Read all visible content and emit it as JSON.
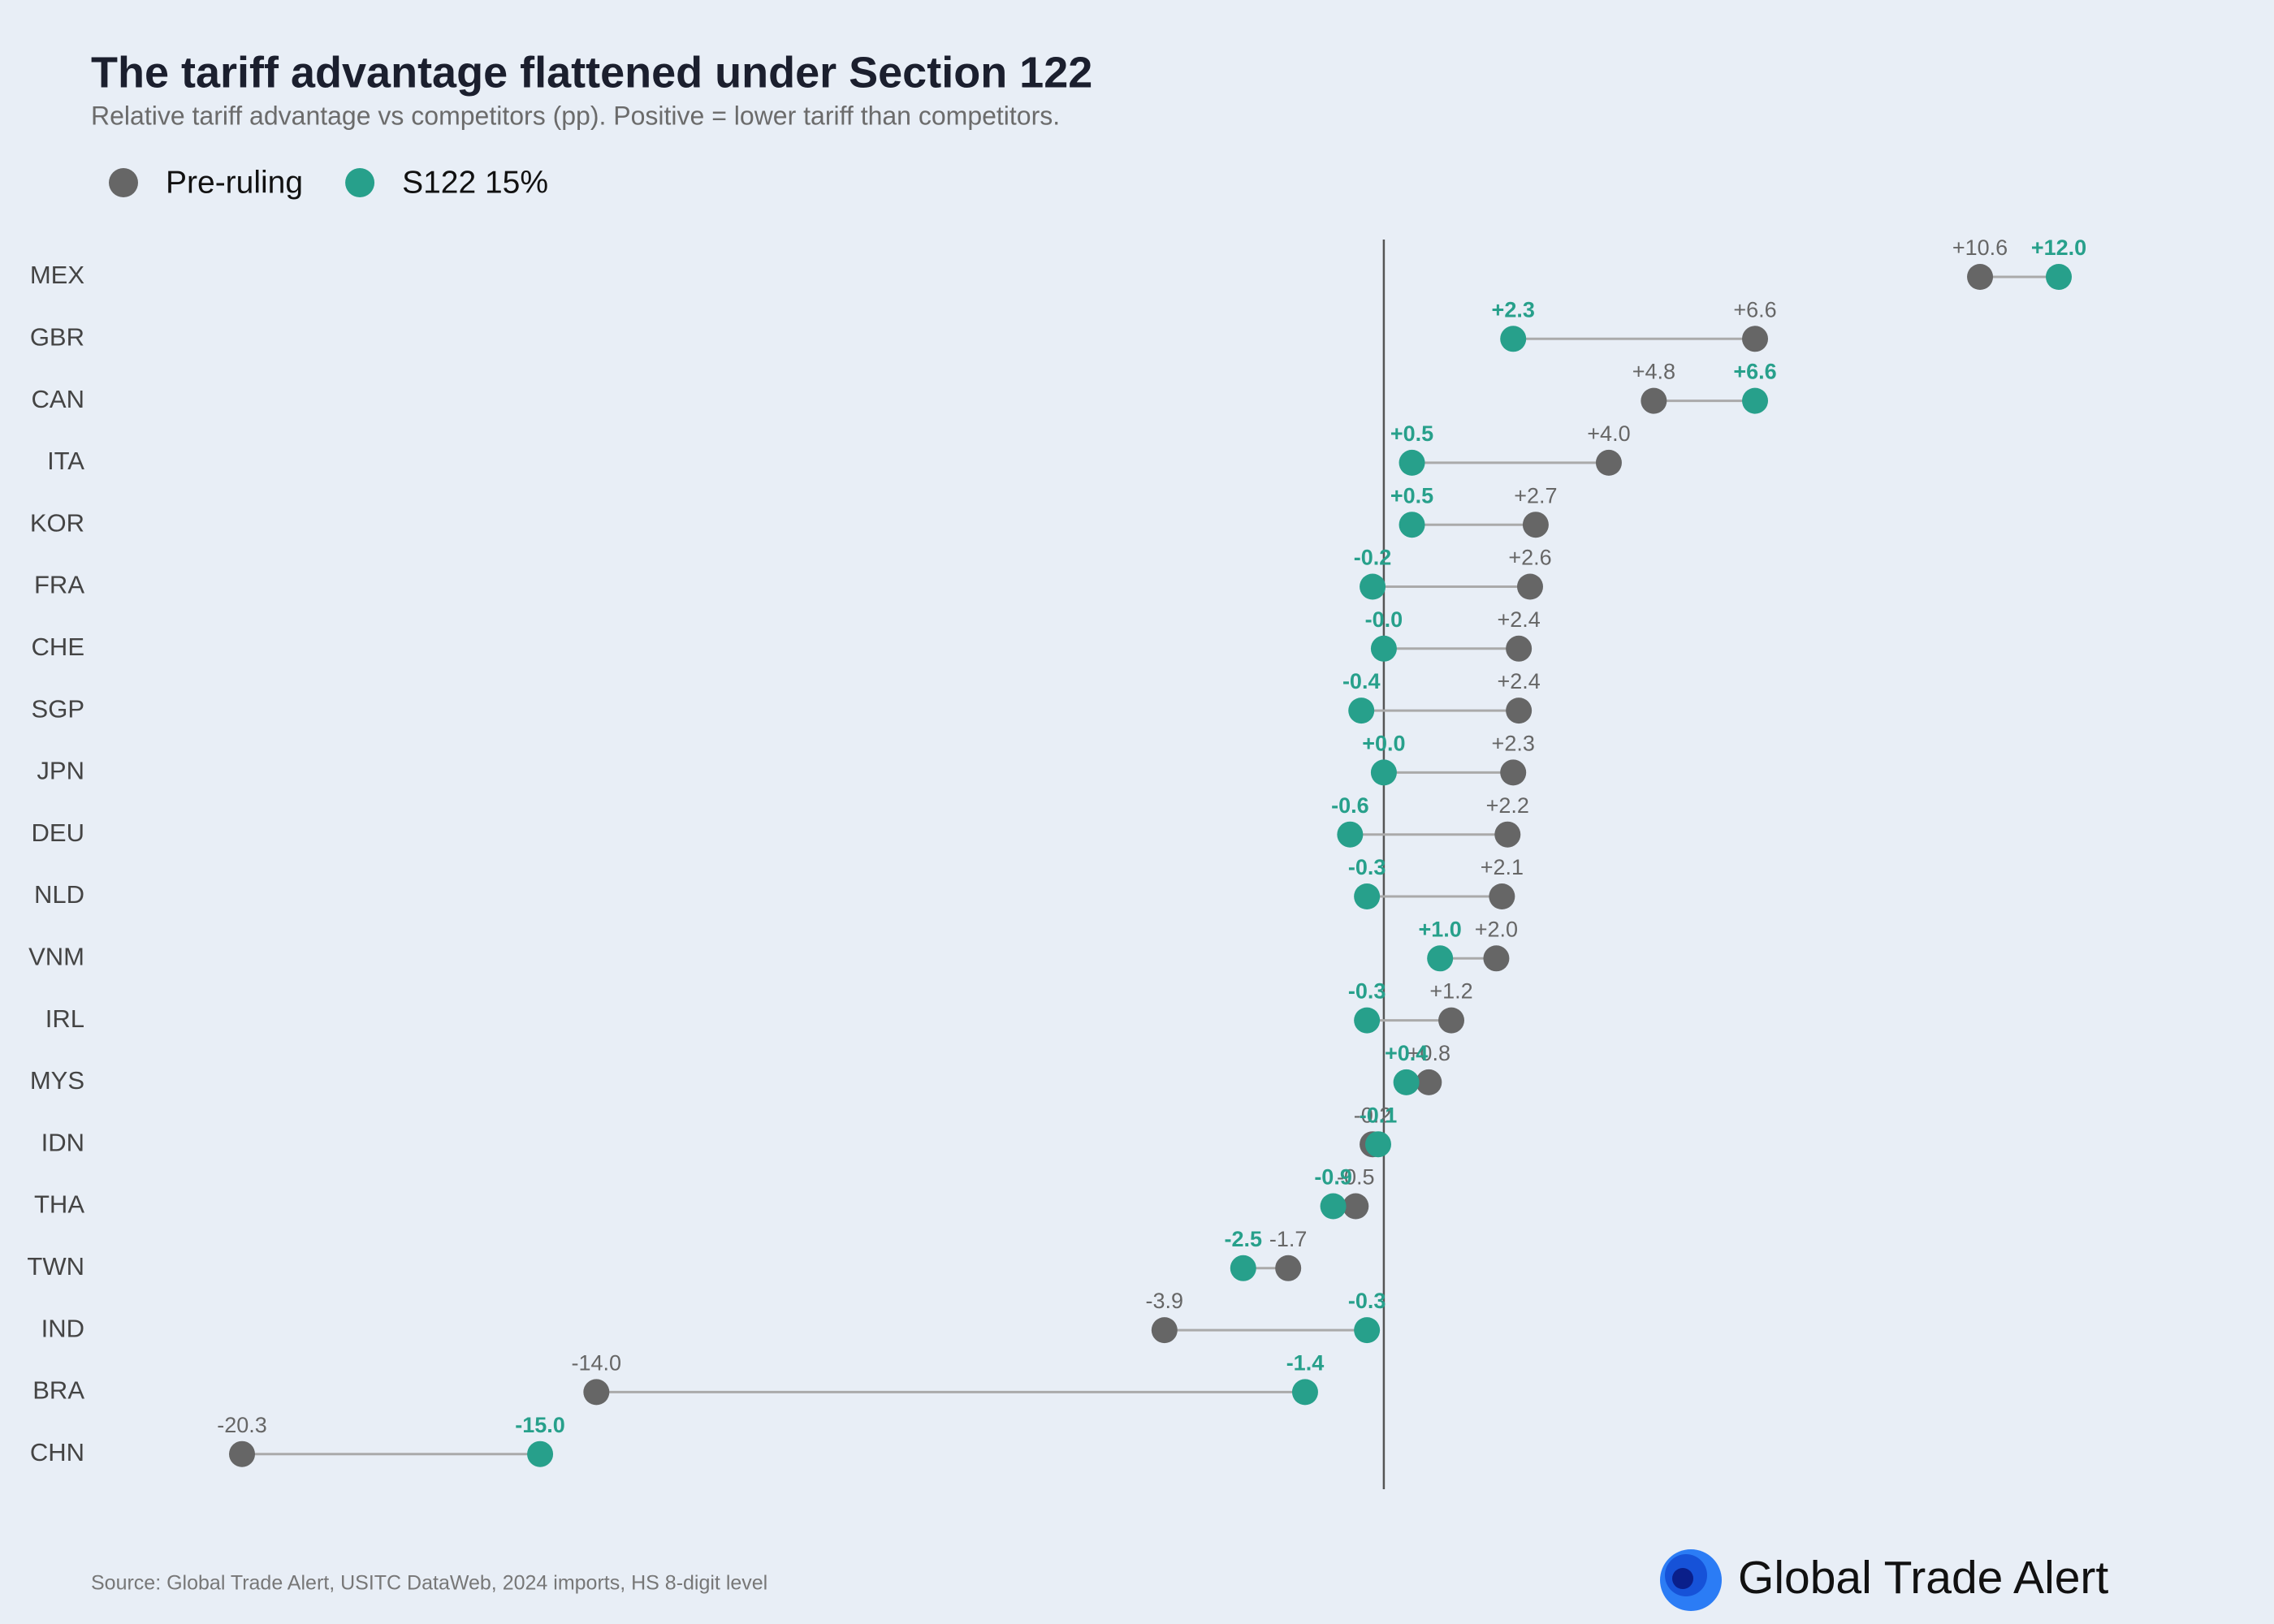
{
  "chart_data": {
    "type": "dumbbell",
    "title": "The tariff advantage flattened under Section 122",
    "subtitle": "Relative tariff advantage vs competitors (pp). Positive = lower tariff than competitors.",
    "categories": [
      "MEX",
      "GBR",
      "CAN",
      "ITA",
      "KOR",
      "FRA",
      "CHE",
      "SGP",
      "JPN",
      "DEU",
      "NLD",
      "VNM",
      "IRL",
      "MYS",
      "IDN",
      "THA",
      "TWN",
      "IND",
      "BRA",
      "CHN"
    ],
    "series": [
      {
        "name": "Pre-ruling",
        "color": "#666666",
        "values": [
          10.6,
          6.6,
          4.8,
          4.0,
          2.7,
          2.6,
          2.4,
          2.4,
          2.3,
          2.2,
          2.1,
          2.0,
          1.2,
          0.8,
          -0.2,
          -0.5,
          -1.7,
          -3.9,
          -14.0,
          -20.3
        ],
        "value_labels": [
          "+10.6",
          "+6.6",
          "+4.8",
          "+4.0",
          "+2.7",
          "+2.6",
          "+2.4",
          "+2.4",
          "+2.3",
          "+2.2",
          "+2.1",
          "+2.0",
          "+1.2",
          "+0.8",
          "-0.2",
          "-0.5",
          "-1.7",
          "-3.9",
          "-14.0",
          "-20.3"
        ]
      },
      {
        "name": "S122 15%",
        "color": "#27a08b",
        "values": [
          12.0,
          2.3,
          6.6,
          0.5,
          0.5,
          -0.2,
          -0.0,
          -0.4,
          0.0,
          -0.6,
          -0.3,
          1.0,
          -0.3,
          0.4,
          -0.1,
          -0.9,
          -2.5,
          -0.3,
          -1.4,
          -15.0
        ],
        "value_labels": [
          "+12.0",
          "+2.3",
          "+6.6",
          "+0.5",
          "+0.5",
          "-0.2",
          "-0.0",
          "-0.4",
          "+0.0",
          "-0.6",
          "-0.3",
          "+1.0",
          "-0.3",
          "+0.4",
          "-0.1",
          "-0.9",
          "-2.5",
          "-0.3",
          "-1.4",
          "-15.0"
        ]
      }
    ],
    "source": "Source: Global Trade Alert, USITC DataWeb, 2024 imports, HS 8-digit level",
    "logo_text": "Global Trade Alert"
  }
}
